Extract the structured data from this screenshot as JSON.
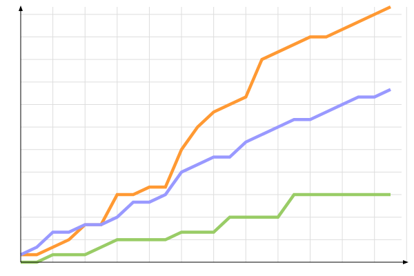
{
  "chart_data": {
    "type": "line",
    "title": "",
    "xlabel": "",
    "ylabel": "",
    "x": [
      0,
      1,
      2,
      3,
      4,
      5,
      6,
      7,
      8,
      9,
      10,
      11,
      12,
      13,
      14,
      15,
      16,
      17,
      18,
      19,
      20,
      21,
      22,
      23
    ],
    "xlim": [
      0,
      23
    ],
    "ylim": [
      0,
      34
    ],
    "grid": true,
    "series": [
      {
        "color": "#ff9933",
        "values": [
          1,
          1,
          2,
          3,
          5,
          5,
          9,
          9,
          10,
          10,
          15,
          18,
          20,
          21,
          22,
          27,
          28,
          29,
          30,
          30,
          31,
          32,
          33,
          34
        ]
      },
      {
        "color": "#9999ff",
        "values": [
          1,
          2,
          4,
          4,
          5,
          5,
          6,
          8,
          8,
          9,
          12,
          13,
          14,
          14,
          16,
          17,
          18,
          19,
          19,
          20,
          21,
          22,
          22,
          23
        ]
      },
      {
        "color": "#99cc66",
        "values": [
          0,
          0,
          1,
          1,
          1,
          2,
          3,
          3,
          3,
          3,
          4,
          4,
          4,
          6,
          6,
          6,
          6,
          9,
          9,
          9,
          9,
          9,
          9,
          9
        ]
      }
    ]
  }
}
